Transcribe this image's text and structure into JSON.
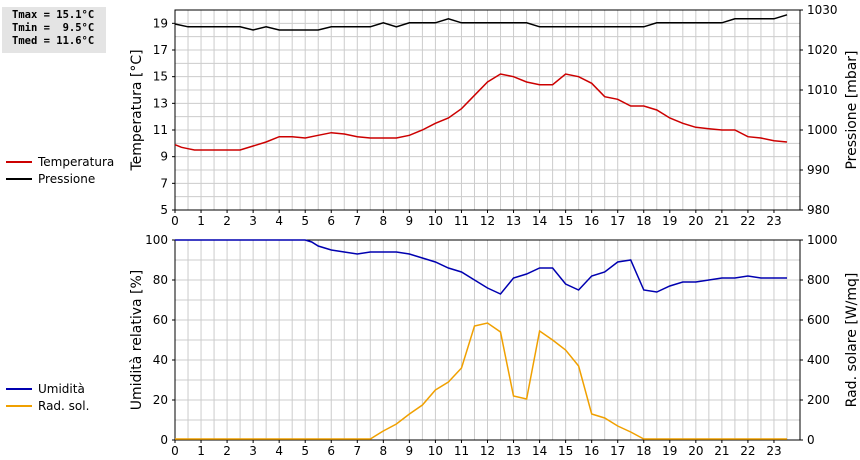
{
  "stats": {
    "tmax": "Tmax = 15.1°C",
    "tmin": "Tmin =  9.5°C",
    "tmed": "Tmed = 11.6°C"
  },
  "colors": {
    "temperature": "#cc0000",
    "pressure": "#000000",
    "humidity": "#0000b0",
    "solar": "#f0a000",
    "grid": "#cccccc"
  },
  "chart_data": [
    {
      "type": "line",
      "ylabel": "Temperatura [°C]",
      "y2label": "Pressione [mbar]",
      "xlim": [
        0,
        24
      ],
      "xticks": [
        0,
        1,
        2,
        3,
        4,
        5,
        6,
        7,
        8,
        9,
        10,
        11,
        12,
        13,
        14,
        15,
        16,
        17,
        18,
        19,
        20,
        21,
        22,
        23
      ],
      "ylim": [
        5,
        20
      ],
      "yticks": [
        5,
        7,
        9,
        11,
        13,
        15,
        17,
        19
      ],
      "y2lim": [
        980,
        1030
      ],
      "y2ticks": [
        980,
        990,
        1000,
        1010,
        1020,
        1030
      ],
      "grid": true,
      "series": [
        {
          "name": "Temperatura",
          "axis": "left",
          "color": "#cc0000",
          "x": [
            0,
            0.25,
            0.5,
            0.75,
            1,
            1.5,
            2,
            2.5,
            3,
            3.5,
            4,
            4.5,
            5,
            5.5,
            6,
            6.5,
            7,
            7.5,
            8,
            8.5,
            9,
            9.5,
            10,
            10.5,
            11,
            11.5,
            12,
            12.5,
            13,
            13.5,
            14,
            14.5,
            15,
            15.5,
            16,
            16.5,
            17,
            17.5,
            18,
            18.5,
            19,
            19.5,
            20,
            20.5,
            21,
            21.5,
            22,
            22.5,
            23,
            23.5
          ],
          "y": [
            9.9,
            9.7,
            9.6,
            9.5,
            9.5,
            9.5,
            9.5,
            9.5,
            9.8,
            10.1,
            10.5,
            10.5,
            10.4,
            10.6,
            10.8,
            10.7,
            10.5,
            10.4,
            10.4,
            10.4,
            10.6,
            11,
            11.5,
            11.9,
            12.6,
            13.6,
            14.6,
            15.2,
            15,
            14.6,
            14.4,
            14.4,
            15.2,
            15,
            14.5,
            13.5,
            13.3,
            12.8,
            12.8,
            12.5,
            11.9,
            11.5,
            11.2,
            11.1,
            11,
            11,
            10.5,
            10.4,
            10.2,
            10.1
          ]
        },
        {
          "name": "Pressione",
          "axis": "right",
          "color": "#000000",
          "x": [
            0,
            0.5,
            1,
            1.5,
            2,
            2.5,
            3,
            3.5,
            4,
            4.5,
            5,
            5.5,
            6,
            6.5,
            7,
            7.5,
            8,
            8.5,
            9,
            9.5,
            10,
            10.5,
            11,
            11.5,
            12,
            12.5,
            13,
            13.5,
            14,
            14.5,
            15,
            15.5,
            16,
            16.5,
            17,
            17.5,
            18,
            18.5,
            19,
            19.5,
            20,
            20.5,
            21,
            21.5,
            22,
            22.5,
            23,
            23.5
          ],
          "y": [
            1026.5,
            1025.8,
            1025.8,
            1025.8,
            1025.8,
            1025.8,
            1025,
            1025.8,
            1025,
            1025,
            1025,
            1025,
            1025.8,
            1025.8,
            1025.8,
            1025.8,
            1026.8,
            1025.8,
            1026.8,
            1026.8,
            1026.8,
            1027.8,
            1026.8,
            1026.8,
            1026.8,
            1026.8,
            1026.8,
            1026.8,
            1025.8,
            1025.8,
            1025.8,
            1025.8,
            1025.8,
            1025.8,
            1025.8,
            1025.8,
            1025.8,
            1026.8,
            1026.8,
            1026.8,
            1026.8,
            1026.8,
            1026.8,
            1027.8,
            1027.8,
            1027.8,
            1027.8,
            1028.8
          ]
        }
      ]
    },
    {
      "type": "line",
      "ylabel": "Umidità relativa [%]",
      "y2label": "Rad. solare [W/mq]",
      "xlim": [
        0,
        24
      ],
      "xticks": [
        0,
        1,
        2,
        3,
        4,
        5,
        6,
        7,
        8,
        9,
        10,
        11,
        12,
        13,
        14,
        15,
        16,
        17,
        18,
        19,
        20,
        21,
        22,
        23
      ],
      "ylim": [
        0,
        100
      ],
      "yticks": [
        0,
        20,
        40,
        60,
        80,
        100
      ],
      "y2lim": [
        0,
        1000
      ],
      "y2ticks": [
        0,
        200,
        400,
        600,
        800,
        1000
      ],
      "grid": true,
      "series": [
        {
          "name": "Umidità",
          "axis": "left",
          "color": "#0000b0",
          "x": [
            0,
            1,
            2,
            3,
            4,
            5,
            5.25,
            5.5,
            6,
            6.5,
            7,
            7.5,
            8,
            8.5,
            9,
            9.5,
            10,
            10.5,
            11,
            11.5,
            12,
            12.5,
            13,
            13.5,
            14,
            14.5,
            15,
            15.5,
            16,
            16.5,
            17,
            17.5,
            18,
            18.5,
            19,
            19.5,
            20,
            20.5,
            21,
            21.5,
            22,
            22.5,
            23,
            23.5
          ],
          "y": [
            100,
            100,
            100,
            100,
            100,
            100,
            99,
            97,
            95,
            94,
            93,
            94,
            94,
            94,
            93,
            91,
            89,
            86,
            84,
            80,
            76,
            73,
            81,
            83,
            86,
            86,
            78,
            75,
            82,
            84,
            89,
            90,
            75,
            74,
            77,
            79,
            79,
            80,
            81,
            81,
            82,
            81,
            81,
            81
          ]
        },
        {
          "name": "Rad. sol.",
          "axis": "right",
          "color": "#f0a000",
          "x": [
            0,
            1,
            2,
            3,
            4,
            5,
            6,
            7,
            7.5,
            8,
            8.5,
            9,
            9.5,
            10,
            10.5,
            11,
            11.5,
            12,
            12.5,
            13,
            13.5,
            14,
            14.5,
            15,
            15.5,
            16,
            16.5,
            17,
            17.5,
            18,
            19,
            20,
            21,
            22,
            23,
            23.5
          ],
          "y": [
            5,
            5,
            5,
            5,
            5,
            5,
            5,
            5,
            5,
            45,
            80,
            130,
            175,
            250,
            290,
            360,
            570,
            585,
            540,
            220,
            205,
            545,
            500,
            450,
            370,
            130,
            110,
            70,
            40,
            5,
            5,
            5,
            5,
            5,
            5,
            5
          ]
        }
      ]
    }
  ],
  "legend": [
    {
      "label": "Temperatura"
    },
    {
      "label": "Pressione"
    },
    {
      "label": "Umidità"
    },
    {
      "label": "Rad. sol."
    }
  ]
}
